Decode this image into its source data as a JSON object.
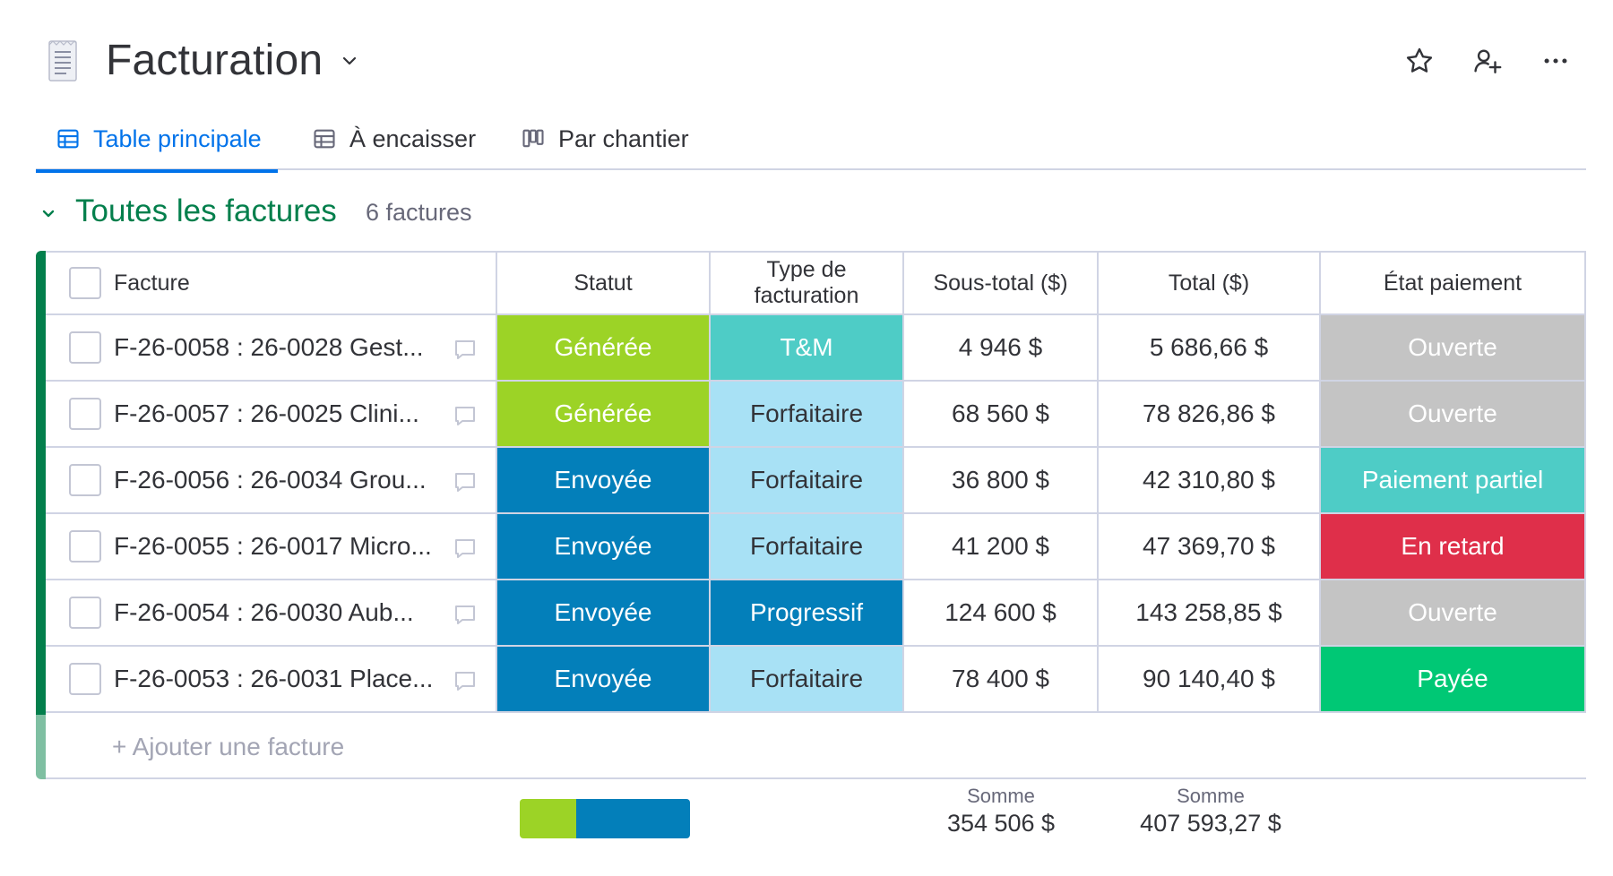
{
  "board": {
    "title": "Facturation",
    "icon": "receipt-icon"
  },
  "header_actions": [
    "star-icon",
    "invite-member-icon",
    "more-options-icon"
  ],
  "tabs": [
    {
      "label": "Table principale",
      "icon": "table-icon",
      "active": true
    },
    {
      "label": "À encaisser",
      "icon": "table-icon",
      "active": false
    },
    {
      "label": "Par chantier",
      "icon": "kanban-icon",
      "active": false
    }
  ],
  "group": {
    "title": "Toutes les factures",
    "count": "6 factures",
    "color": "#037f4c"
  },
  "columns": {
    "name": "Facture",
    "status": "Statut",
    "type_line1": "Type de",
    "type_line2": "facturation",
    "subtotal": "Sous-total ($)",
    "total": "Total ($)",
    "payment": "État paiement"
  },
  "rows": [
    {
      "name": "F-26-0058 : 26-0028 Gest...",
      "status": "Générée",
      "status_color": "#9cd326",
      "type": "T&M",
      "type_color": "#4eccc6",
      "subtotal": "4 946 $",
      "total": "5 686,66 $",
      "payment": "Ouverte",
      "payment_color": "#c4c4c4"
    },
    {
      "name": "F-26-0057 : 26-0025 Clini...",
      "status": "Générée",
      "status_color": "#9cd326",
      "type": "Forfaitaire",
      "type_color": "#a8e1f5",
      "subtotal": "68 560 $",
      "total": "78 826,86 $",
      "payment": "Ouverte",
      "payment_color": "#c4c4c4"
    },
    {
      "name": "F-26-0056 : 26-0034 Grou...",
      "status": "Envoyée",
      "status_color": "#037fba",
      "type": "Forfaitaire",
      "type_color": "#a8e1f5",
      "subtotal": "36 800 $",
      "total": "42 310,80 $",
      "payment": "Paiement partiel",
      "payment_color": "#4eccc6"
    },
    {
      "name": "F-26-0055 : 26-0017 Micro...",
      "status": "Envoyée",
      "status_color": "#037fba",
      "type": "Forfaitaire",
      "type_color": "#a8e1f5",
      "subtotal": "41 200 $",
      "total": "47 369,70 $",
      "payment": "En retard",
      "payment_color": "#df2f4a"
    },
    {
      "name": "F-26-0054 : 26-0030 Aub...",
      "status": "Envoyée",
      "status_color": "#037fba",
      "type": "Progressif",
      "type_color": "#037fba",
      "subtotal": "124 600 $",
      "total": "143 258,85 $",
      "payment": "Ouverte",
      "payment_color": "#c4c4c4"
    },
    {
      "name": "F-26-0053 : 26-0031 Place...",
      "status": "Envoyée",
      "status_color": "#037fba",
      "type": "Forfaitaire",
      "type_color": "#a8e1f5",
      "subtotal": "78 400 $",
      "total": "90 140,40 $",
      "payment": "Payée",
      "payment_color": "#00c875"
    }
  ],
  "add_row_label": "+ Ajouter une facture",
  "footer": {
    "status_distribution": [
      {
        "status": "Générée",
        "fraction": 0.333,
        "color": "#9cd326"
      },
      {
        "status": "Envoyée",
        "fraction": 0.667,
        "color": "#037fba"
      }
    ],
    "subtotal_label": "Somme",
    "subtotal_value": "354 506 $",
    "total_label": "Somme",
    "total_value": "407 593,27 $"
  }
}
